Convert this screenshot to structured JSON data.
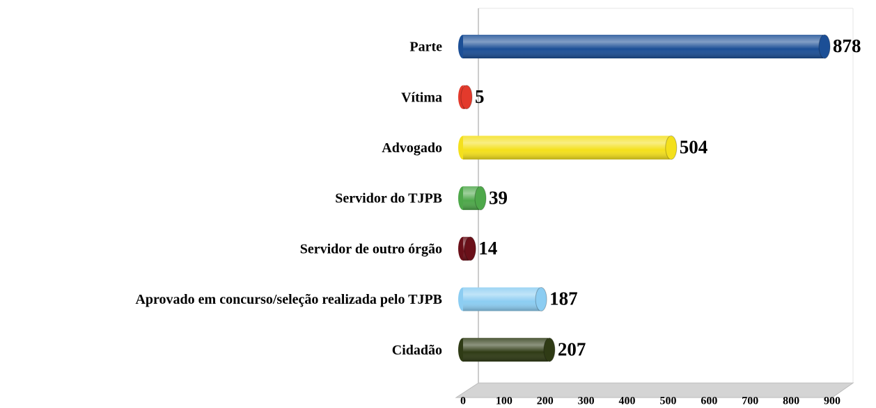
{
  "chart_data": {
    "type": "bar",
    "orientation": "horizontal",
    "categories": [
      "Parte",
      "Vítima",
      "Advogado",
      "Servidor do TJPB",
      "Servidor de outro órgão",
      "Aprovado em concurso/seleção realizada pelo TJPB",
      "Cidadão"
    ],
    "values": [
      878,
      5,
      504,
      39,
      14,
      187,
      207
    ],
    "colors": [
      "#1c4f96",
      "#e33a2c",
      "#f4e01c",
      "#4ea84a",
      "#6a1019",
      "#8ccdf2",
      "#2f3b15"
    ],
    "xlim": [
      0,
      900
    ],
    "xticks": [
      0,
      100,
      200,
      300,
      400,
      500,
      600,
      700,
      800,
      900
    ]
  }
}
